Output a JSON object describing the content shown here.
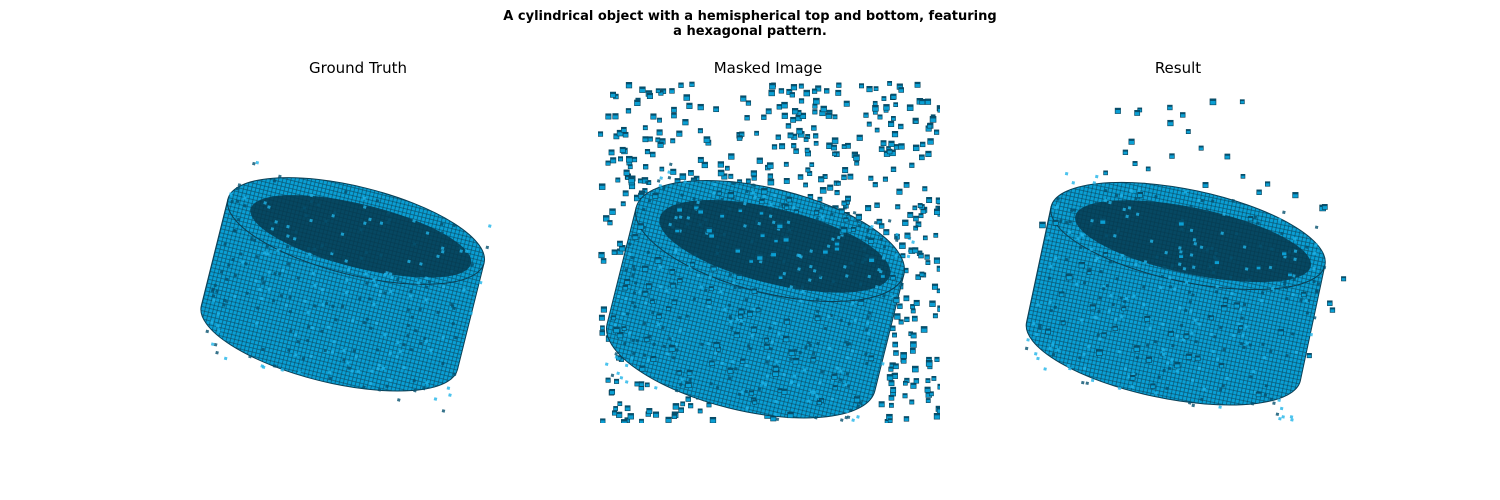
{
  "figure": {
    "title_lines": [
      "A cylindrical object with a hemispherical top and bottom, featuring",
      "a hexagonal pattern."
    ]
  },
  "panels": [
    {
      "title": "Ground Truth",
      "content": "voxel-cylinder"
    },
    {
      "title": "Masked Image",
      "content": "voxel-cylinder-with-dense-noise"
    },
    {
      "title": "Result",
      "content": "voxel-cylinder-with-sparse-noise"
    }
  ],
  "colors": {
    "voxel_face": "#0a9fd4",
    "voxel_dark": "#05506e",
    "voxel_edge": "#0a3f55",
    "voxel_shadow": "#06384d"
  }
}
